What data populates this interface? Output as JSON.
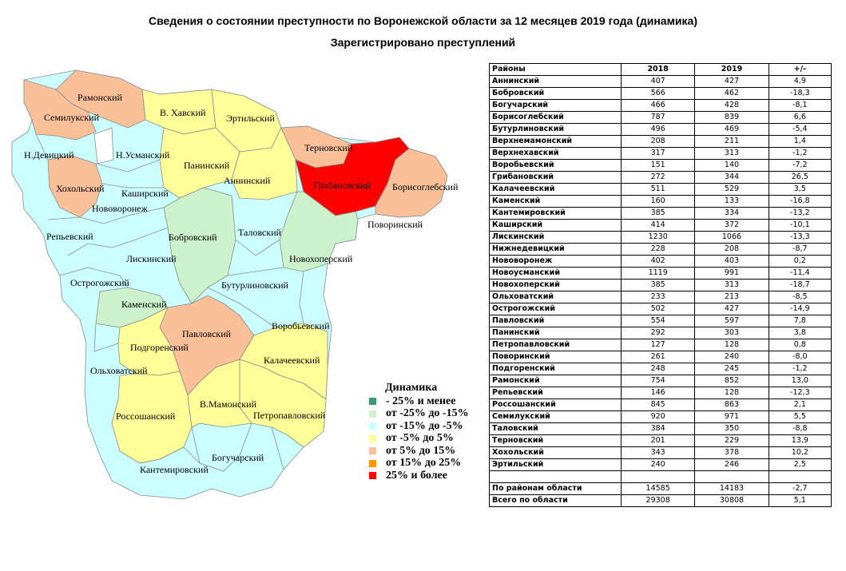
{
  "title": "Сведения о состоянии преступности по Воронежской области  за 12 месяцев 2019 года (динамика)",
  "subtitle": "Зарегистрировано преступлений",
  "colors": {
    "c1": "#3a9a6a",
    "c2": "#ccf2cc",
    "c3": "#ccffff",
    "c4": "#ffff99",
    "c5": "#f9c09a",
    "c6": "#ff9900",
    "c7": "#ff0000"
  },
  "legend": {
    "title": "Динамика",
    "items": [
      {
        "label": "- 25% и менее",
        "color": "#3a9a6a"
      },
      {
        "label": "от -25% до -15%",
        "color": "#ccf2cc"
      },
      {
        "label": "от -15% до -5%",
        "color": "#ccffff"
      },
      {
        "label": "от -5% до 5%",
        "color": "#ffff99"
      },
      {
        "label": "от 5% до 15%",
        "color": "#f9c09a"
      },
      {
        "label": "от 15% до 25%",
        "color": "#ff9900"
      },
      {
        "label": "25% и более",
        "color": "#ff0000"
      }
    ]
  },
  "map_labels": {
    "ramonsky": "Рамонский",
    "semiluksky": "Семилукский",
    "vhavsky": "В. Хавский",
    "ertilsky": "Эртильский",
    "ternovsky": "Терновский",
    "ndevitsky": "Н.Девицкий",
    "nusmansky": "Н.Усманский",
    "paninsky": "Панинский",
    "anninsky": "Аннинский",
    "gribanovsky": "Грибановский",
    "borisoglebsky": "Борисоглебский",
    "hoholsky": "Хохольский",
    "kashirsky": "Каширский",
    "novovoronezh": "Нововоронеж",
    "povorinsky": "Поворинский",
    "repyevsky": "Репьевский",
    "bobrovsky": "Бобровский",
    "talovsky": "Таловский",
    "novohopersky": "Новохоперский",
    "liskinsky": "Лискинский",
    "ostrogozhsky": "Острогожский",
    "buturlinovsky": "Бутурлиновский",
    "kamensky": "Каменский",
    "vorobyevsky": "Воробьевский",
    "pavlovsky": "Павловский",
    "podgorensky": "Подгоренский",
    "olhovatsky": "Ольховатский",
    "kalacheevsky": "Калачеевский",
    "vmamonsky": "В.Мамонский",
    "rossoshansky": "Россошанский",
    "petropavlovsky": "Петропавловский",
    "boguchar": "Богучарский",
    "kantemirovsky": "Кантемировский"
  },
  "table": {
    "headers": [
      "Районы",
      "2018",
      "2019",
      "+/-"
    ],
    "rows": [
      [
        "Аннинский",
        "407",
        "427",
        "4,9"
      ],
      [
        "Бобровский",
        "566",
        "462",
        "-18,3"
      ],
      [
        "Богучарский",
        "466",
        "428",
        "-8,1"
      ],
      [
        "Борисоглебский",
        "787",
        "839",
        "6,6"
      ],
      [
        "Бутурлиновский",
        "496",
        "469",
        "-5,4"
      ],
      [
        "Верхнемамонский",
        "208",
        "211",
        "1,4"
      ],
      [
        "Верхнехавский",
        "317",
        "313",
        "-1,2"
      ],
      [
        "Воробьевский",
        "151",
        "140",
        "-7,2"
      ],
      [
        "Грибановский",
        "272",
        "344",
        "26,5"
      ],
      [
        "Калачеевский",
        "511",
        "529",
        "3,5"
      ],
      [
        "Каменский",
        "160",
        "133",
        "-16,8"
      ],
      [
        "Кантемировский",
        "385",
        "334",
        "-13,2"
      ],
      [
        "Каширский",
        "414",
        "372",
        "-10,1"
      ],
      [
        "Лискинский",
        "1230",
        "1066",
        "-13,3"
      ],
      [
        "Нижнедевицкий",
        "228",
        "208",
        "-8,7"
      ],
      [
        "Нововоронеж",
        "402",
        "403",
        "0,2"
      ],
      [
        "Новоусманский",
        "1119",
        "991",
        "-11,4"
      ],
      [
        "Новохоперский",
        "385",
        "313",
        "-18,7"
      ],
      [
        "Ольховатский",
        "233",
        "213",
        "-8,5"
      ],
      [
        "Острогожский",
        "502",
        "427",
        "-14,9"
      ],
      [
        "Павловский",
        "554",
        "597",
        "7,8"
      ],
      [
        "Панинский",
        "292",
        "303",
        "3,8"
      ],
      [
        "Петропавловский",
        "127",
        "128",
        "0,8"
      ],
      [
        "Поворинский",
        "261",
        "240",
        "-8,0"
      ],
      [
        "Подгоренский",
        "248",
        "245",
        "-1,2"
      ],
      [
        "Рамонский",
        "754",
        "852",
        "13,0"
      ],
      [
        "Репьевский",
        "146",
        "128",
        "-12,3"
      ],
      [
        "Россошанский",
        "845",
        "863",
        "2,1"
      ],
      [
        "Семилукский",
        "920",
        "971",
        "5,5"
      ],
      [
        "Таловский",
        "384",
        "350",
        "-8,8"
      ],
      [
        "Терновский",
        "201",
        "229",
        "13,9"
      ],
      [
        "Хохольский",
        "343",
        "378",
        "10,2"
      ],
      [
        "Эртильский",
        "240",
        "246",
        "2,5"
      ]
    ],
    "totals": [
      [
        "По районам области",
        "14585",
        "14183",
        "-2,7"
      ],
      [
        "Всего по области",
        "29308",
        "30808",
        "5,1"
      ]
    ]
  }
}
